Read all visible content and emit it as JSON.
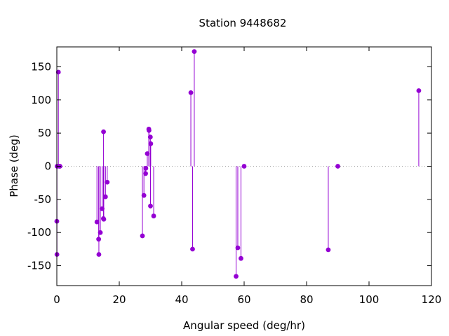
{
  "chart_data": {
    "type": "scatter",
    "style": "impulses-with-points",
    "title": "Station 9448682",
    "xlabel": "Angular speed (deg/hr)",
    "ylabel": "Phase (deg)",
    "xlim": [
      0,
      120
    ],
    "ylim": [
      -180,
      180
    ],
    "xticks": [
      0,
      20,
      40,
      60,
      80,
      100,
      120
    ],
    "yticks": [
      -150,
      -100,
      -50,
      0,
      50,
      100,
      150
    ],
    "baseline": 0,
    "grid": false,
    "legend": "none",
    "color": "#9400d3",
    "points": [
      {
        "x": 0.0,
        "y": -83
      },
      {
        "x": 0.04,
        "y": -133
      },
      {
        "x": 0.08,
        "y": 0
      },
      {
        "x": 0.5,
        "y": 142
      },
      {
        "x": 0.8,
        "y": 0
      },
      {
        "x": 1.0,
        "y": 0
      },
      {
        "x": 12.85,
        "y": -84
      },
      {
        "x": 13.4,
        "y": -110
      },
      {
        "x": 13.47,
        "y": -133
      },
      {
        "x": 13.94,
        "y": -100
      },
      {
        "x": 14.5,
        "y": -64
      },
      {
        "x": 14.92,
        "y": -79
      },
      {
        "x": 14.96,
        "y": 52
      },
      {
        "x": 15.04,
        "y": -80
      },
      {
        "x": 15.58,
        "y": -46
      },
      {
        "x": 16.14,
        "y": -24
      },
      {
        "x": 27.42,
        "y": -105
      },
      {
        "x": 27.9,
        "y": -44
      },
      {
        "x": 28.44,
        "y": -11
      },
      {
        "x": 28.51,
        "y": -3
      },
      {
        "x": 28.98,
        "y": 19
      },
      {
        "x": 29.46,
        "y": 56
      },
      {
        "x": 29.53,
        "y": 54
      },
      {
        "x": 29.96,
        "y": 44
      },
      {
        "x": 30.0,
        "y": -60
      },
      {
        "x": 30.08,
        "y": 34
      },
      {
        "x": 31.02,
        "y": -75
      },
      {
        "x": 42.93,
        "y": 111
      },
      {
        "x": 43.48,
        "y": -125
      },
      {
        "x": 44.03,
        "y": 173
      },
      {
        "x": 57.42,
        "y": -166
      },
      {
        "x": 57.97,
        "y": -123
      },
      {
        "x": 58.98,
        "y": -139
      },
      {
        "x": 60.0,
        "y": 0
      },
      {
        "x": 86.95,
        "y": -126
      },
      {
        "x": 90.0,
        "y": 0
      },
      {
        "x": 115.94,
        "y": 114
      }
    ]
  }
}
